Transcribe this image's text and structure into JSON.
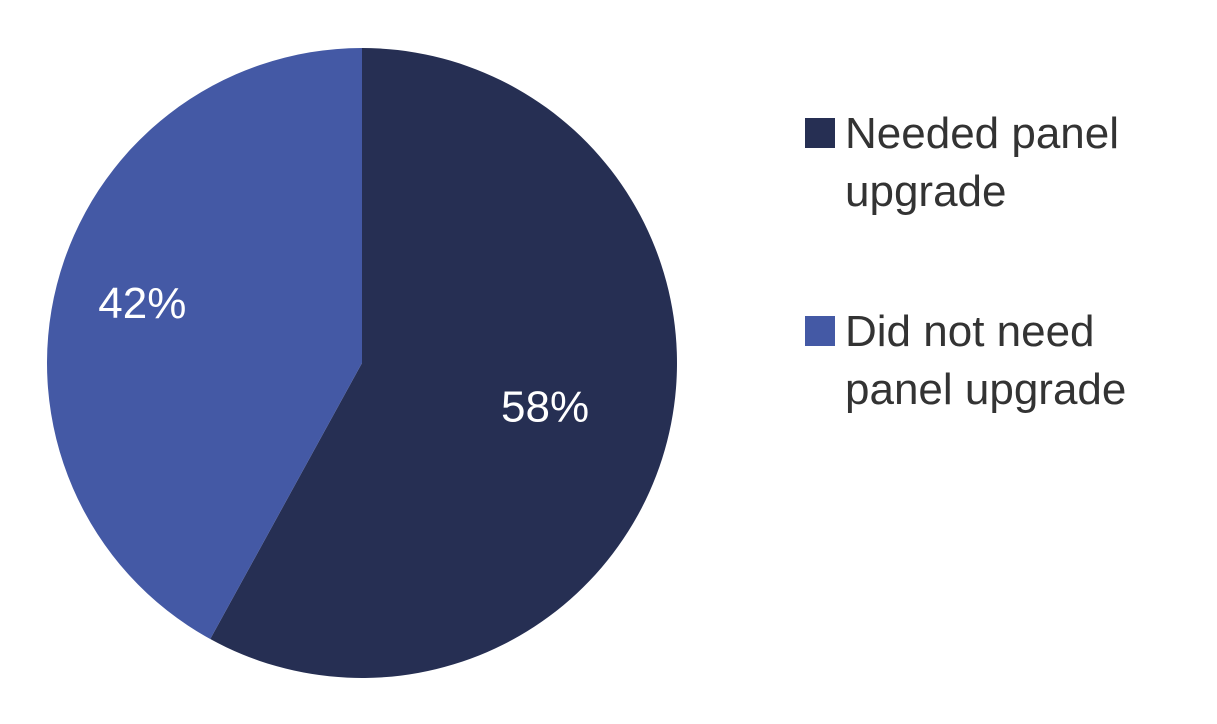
{
  "chart_data": {
    "type": "pie",
    "title": "",
    "slices": [
      {
        "label": "Needed panel upgrade",
        "value": 58,
        "value_label": "58%",
        "color": "#262f53"
      },
      {
        "label": "Did not need panel upgrade",
        "value": 42,
        "value_label": "42%",
        "color": "#4459a5"
      }
    ],
    "start_angle_deg": 0,
    "direction": "clockwise",
    "legend_position": "right",
    "data_labels": "inside",
    "label_color": "#ffffff"
  }
}
